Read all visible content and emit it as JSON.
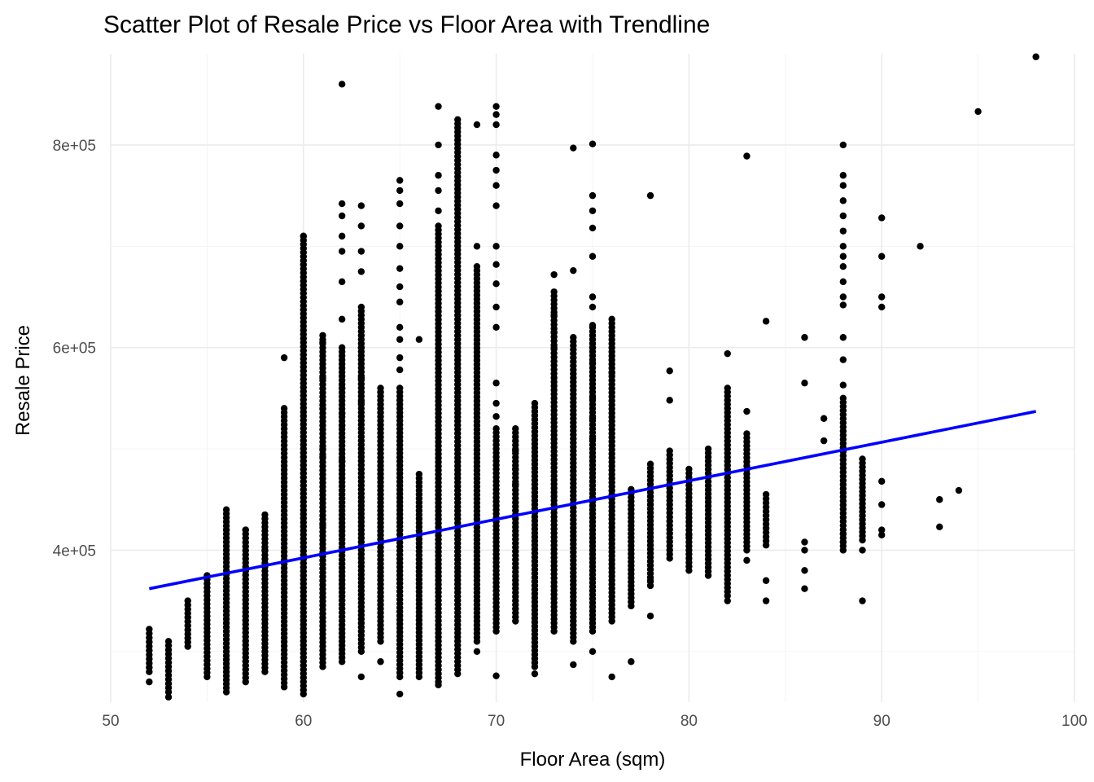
{
  "chart_data": {
    "type": "scatter",
    "title": "Scatter Plot of Resale Price vs Floor Area with Trendline",
    "xlabel": "Floor Area (sqm)",
    "ylabel": "Resale Price",
    "xlim": [
      50,
      100
    ],
    "ylim": [
      250000,
      890000
    ],
    "x_ticks": [
      50,
      60,
      70,
      80,
      90,
      100
    ],
    "x_tick_labels": [
      "50",
      "60",
      "70",
      "80",
      "90",
      "100"
    ],
    "y_ticks": [
      400000,
      600000,
      800000
    ],
    "y_tick_labels": [
      "4e+05",
      "6e+05",
      "8e+05"
    ],
    "grid": true,
    "point_color": "#000000",
    "trend_color": "#0000ff",
    "trendline": {
      "x": [
        52,
        98
      ],
      "y": [
        362000,
        537000
      ]
    },
    "columns": [
      {
        "x": 52,
        "min": 280000,
        "max": 322000
      },
      {
        "x": 53,
        "min": 260000,
        "max": 310000
      },
      {
        "x": 54,
        "min": 305000,
        "max": 350000
      },
      {
        "x": 55,
        "min": 275000,
        "max": 375000
      },
      {
        "x": 56,
        "min": 260000,
        "max": 440000
      },
      {
        "x": 57,
        "min": 270000,
        "max": 420000
      },
      {
        "x": 58,
        "min": 280000,
        "max": 435000
      },
      {
        "x": 59,
        "min": 265000,
        "max": 540000
      },
      {
        "x": 60,
        "min": 262000,
        "max": 710000
      },
      {
        "x": 61,
        "min": 285000,
        "max": 612000
      },
      {
        "x": 62,
        "min": 290000,
        "max": 600000
      },
      {
        "x": 63,
        "min": 300000,
        "max": 640000
      },
      {
        "x": 64,
        "min": 310000,
        "max": 560000
      },
      {
        "x": 65,
        "min": 275000,
        "max": 560000
      },
      {
        "x": 66,
        "min": 275000,
        "max": 475000
      },
      {
        "x": 67,
        "min": 270000,
        "max": 720000
      },
      {
        "x": 68,
        "min": 278000,
        "max": 825000
      },
      {
        "x": 69,
        "min": 310000,
        "max": 680000
      },
      {
        "x": 70,
        "min": 320000,
        "max": 520000
      },
      {
        "x": 71,
        "min": 330000,
        "max": 520000
      },
      {
        "x": 72,
        "min": 285000,
        "max": 545000
      },
      {
        "x": 73,
        "min": 320000,
        "max": 655000
      },
      {
        "x": 74,
        "min": 310000,
        "max": 610000
      },
      {
        "x": 75,
        "min": 320000,
        "max": 620000
      },
      {
        "x": 76,
        "min": 330000,
        "max": 628000
      },
      {
        "x": 77,
        "min": 345000,
        "max": 460000
      },
      {
        "x": 78,
        "min": 365000,
        "max": 485000
      },
      {
        "x": 79,
        "min": 392000,
        "max": 498000
      },
      {
        "x": 80,
        "min": 380000,
        "max": 480000
      },
      {
        "x": 81,
        "min": 375000,
        "max": 500000
      },
      {
        "x": 82,
        "min": 355000,
        "max": 560000
      },
      {
        "x": 83,
        "min": 400000,
        "max": 515000
      },
      {
        "x": 84,
        "min": 405000,
        "max": 455000
      },
      {
        "x": 88,
        "min": 400000,
        "max": 550000
      },
      {
        "x": 89,
        "min": 410000,
        "max": 490000
      }
    ],
    "points": [
      [
        52,
        270000
      ],
      [
        53,
        255000
      ],
      [
        56,
        420000
      ],
      [
        57,
        420000
      ],
      [
        58,
        400000
      ],
      [
        59,
        590000
      ],
      [
        60,
        710000
      ],
      [
        60,
        258000
      ],
      [
        61,
        540000
      ],
      [
        61,
        570000
      ],
      [
        61,
        605000
      ],
      [
        61,
        500000
      ],
      [
        61,
        492000
      ],
      [
        61,
        425000
      ],
      [
        62,
        860000
      ],
      [
        62,
        742000
      ],
      [
        62,
        730000
      ],
      [
        62,
        710000
      ],
      [
        62,
        695000
      ],
      [
        62,
        665000
      ],
      [
        62,
        628000
      ],
      [
        62,
        560000
      ],
      [
        62,
        535000
      ],
      [
        62,
        488000
      ],
      [
        62,
        523000
      ],
      [
        63,
        740000
      ],
      [
        63,
        720000
      ],
      [
        63,
        695000
      ],
      [
        63,
        675000
      ],
      [
        63,
        600000
      ],
      [
        63,
        570000
      ],
      [
        63,
        546000
      ],
      [
        63,
        275000
      ],
      [
        64,
        556000
      ],
      [
        64,
        290000
      ],
      [
        65,
        765000
      ],
      [
        65,
        755000
      ],
      [
        65,
        742000
      ],
      [
        65,
        720000
      ],
      [
        65,
        700000
      ],
      [
        65,
        678000
      ],
      [
        65,
        660000
      ],
      [
        65,
        645000
      ],
      [
        65,
        620000
      ],
      [
        65,
        608000
      ],
      [
        65,
        590000
      ],
      [
        65,
        578000
      ],
      [
        65,
        258000
      ],
      [
        66,
        608000
      ],
      [
        67,
        838000
      ],
      [
        67,
        800000
      ],
      [
        67,
        770000
      ],
      [
        67,
        755000
      ],
      [
        67,
        735000
      ],
      [
        67,
        267000
      ],
      [
        69,
        820000
      ],
      [
        69,
        700000
      ],
      [
        69,
        300000
      ],
      [
        70,
        838000
      ],
      [
        70,
        830000
      ],
      [
        70,
        820000
      ],
      [
        70,
        790000
      ],
      [
        70,
        775000
      ],
      [
        70,
        760000
      ],
      [
        70,
        740000
      ],
      [
        70,
        700000
      ],
      [
        70,
        682000
      ],
      [
        70,
        663000
      ],
      [
        70,
        640000
      ],
      [
        70,
        620000
      ],
      [
        70,
        565000
      ],
      [
        70,
        545000
      ],
      [
        70,
        532000
      ],
      [
        70,
        276000
      ],
      [
        71,
        498000
      ],
      [
        71,
        480000
      ],
      [
        71,
        465000
      ],
      [
        72,
        278000
      ],
      [
        73,
        672000
      ],
      [
        73,
        632000
      ],
      [
        73,
        615000
      ],
      [
        73,
        600000
      ],
      [
        74,
        797000
      ],
      [
        74,
        676000
      ],
      [
        74,
        287000
      ],
      [
        75,
        801000
      ],
      [
        75,
        750000
      ],
      [
        75,
        735000
      ],
      [
        75,
        718000
      ],
      [
        75,
        690000
      ],
      [
        75,
        650000
      ],
      [
        75,
        640000
      ],
      [
        75,
        622000
      ],
      [
        75,
        600000
      ],
      [
        75,
        585000
      ],
      [
        75,
        550000
      ],
      [
        75,
        530000
      ],
      [
        75,
        510000
      ],
      [
        75,
        300000
      ],
      [
        76,
        575000
      ],
      [
        76,
        275000
      ],
      [
        77,
        290000
      ],
      [
        78,
        750000
      ],
      [
        78,
        335000
      ],
      [
        78,
        370000
      ],
      [
        79,
        577000
      ],
      [
        79,
        548000
      ],
      [
        80,
        415000
      ],
      [
        82,
        594000
      ],
      [
        82,
        350000
      ],
      [
        83,
        789000
      ],
      [
        83,
        537000
      ],
      [
        83,
        390000
      ],
      [
        84,
        626000
      ],
      [
        84,
        350000
      ],
      [
        84,
        370000
      ],
      [
        86,
        610000
      ],
      [
        86,
        565000
      ],
      [
        86,
        408000
      ],
      [
        86,
        400000
      ],
      [
        86,
        380000
      ],
      [
        86,
        362000
      ],
      [
        87,
        530000
      ],
      [
        87,
        508000
      ],
      [
        88,
        800000
      ],
      [
        88,
        770000
      ],
      [
        88,
        760000
      ],
      [
        88,
        745000
      ],
      [
        88,
        730000
      ],
      [
        88,
        715000
      ],
      [
        88,
        700000
      ],
      [
        88,
        690000
      ],
      [
        88,
        680000
      ],
      [
        88,
        665000
      ],
      [
        88,
        650000
      ],
      [
        88,
        642000
      ],
      [
        88,
        610000
      ],
      [
        88,
        588000
      ],
      [
        88,
        563000
      ],
      [
        88,
        408000
      ],
      [
        88,
        416000
      ],
      [
        89,
        350000
      ],
      [
        89,
        400000
      ],
      [
        90,
        728000
      ],
      [
        90,
        690000
      ],
      [
        90,
        650000
      ],
      [
        90,
        640000
      ],
      [
        90,
        468000
      ],
      [
        90,
        445000
      ],
      [
        90,
        420000
      ],
      [
        90,
        415000
      ],
      [
        92,
        700000
      ],
      [
        93,
        450000
      ],
      [
        93,
        423000
      ],
      [
        94,
        459000
      ],
      [
        95,
        833000
      ],
      [
        98,
        887000
      ]
    ]
  }
}
